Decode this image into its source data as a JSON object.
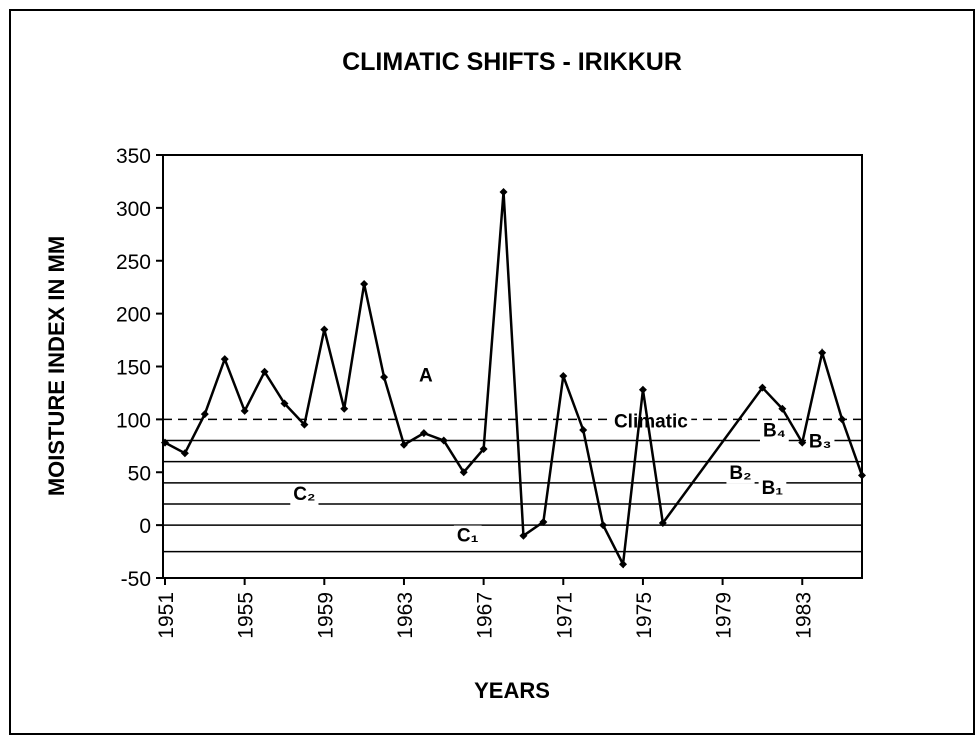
{
  "chart_data": {
    "type": "line",
    "title": "CLIMATIC SHIFTS - IRIKKUR",
    "x_label": "YEARS",
    "y_label": "MOISTURE INDEX IN MM",
    "x": [
      1951,
      1952,
      1953,
      1954,
      1955,
      1956,
      1957,
      1958,
      1959,
      1960,
      1961,
      1962,
      1963,
      1964,
      1965,
      1966,
      1967,
      1968,
      1969,
      1970,
      1971,
      1972,
      1973,
      1974,
      1975,
      1976,
      1981,
      1982,
      1983,
      1984,
      1985,
      1986
    ],
    "series": [
      {
        "name": "Moisture index",
        "color": "#000000",
        "values": [
          78,
          68,
          105,
          157,
          108,
          145,
          115,
          95,
          185,
          110,
          228,
          140,
          76,
          87,
          80,
          50,
          72,
          315,
          -10,
          3,
          141,
          90,
          0,
          -37,
          128,
          2,
          130,
          110,
          78,
          163,
          100,
          47
        ]
      }
    ],
    "reference_lines": [
      {
        "name": "Climatic",
        "value": 100,
        "style": "dashed"
      },
      {
        "name": "B₄",
        "value": 80
      },
      {
        "name": "B₃",
        "value": 60
      },
      {
        "name": "B₂",
        "value": 40
      },
      {
        "name": "B₁",
        "value": 20
      },
      {
        "name": "C₂",
        "value": 0
      },
      {
        "name": "C₁",
        "value": -25
      }
    ],
    "zone_label": "A",
    "xlim": [
      1950.9,
      1986
    ],
    "xticks": [
      1951,
      1955,
      1959,
      1963,
      1967,
      1971,
      1975,
      1979,
      1983
    ],
    "ylim": [
      -50,
      350
    ],
    "yticks": [
      -50,
      0,
      50,
      100,
      150,
      200,
      250,
      300,
      350
    ]
  }
}
